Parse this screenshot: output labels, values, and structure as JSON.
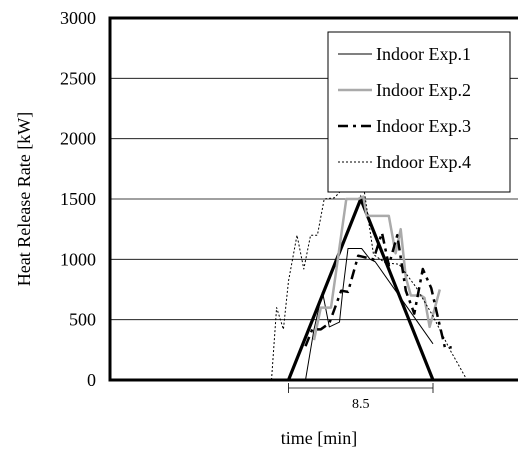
{
  "chart_data": {
    "type": "line",
    "title": "",
    "xlabel": "time [min]",
    "ylabel": "Heat Release Rate [kW]",
    "xlim": [
      0,
      24
    ],
    "ylim": [
      0,
      3000
    ],
    "y_ticks": [
      "0",
      "500",
      "1000",
      "1500",
      "2000",
      "2500",
      "3000"
    ],
    "grid": "horizontal",
    "legend_position": "top-right",
    "annotation": {
      "label": "8.5",
      "x_start": 10.5,
      "x_end": 19.0
    },
    "reference_triangle": {
      "x": [
        10.5,
        14.75,
        19.0
      ],
      "y": [
        0,
        1500,
        0
      ]
    },
    "series": [
      {
        "name": "Indoor Exp.1",
        "style": "thin-solid",
        "color": "#000000",
        "x": [
          11.5,
          12.0,
          12.5,
          12.9,
          13.5,
          13.7,
          14.0,
          14.8,
          15.3,
          15.6,
          18.0,
          19.0
        ],
        "y": [
          0,
          420,
          730,
          440,
          480,
          750,
          1090,
          1090,
          1000,
          980,
          500,
          300
        ]
      },
      {
        "name": "Indoor Exp.2",
        "style": "thick-solid-gray",
        "color": "#aaaaaa",
        "x": [
          12.0,
          12.4,
          13.0,
          13.3,
          13.9,
          14.6,
          14.9,
          15.1,
          16.1,
          16.4,
          16.8,
          17.1,
          17.4,
          17.7,
          18.3,
          18.5,
          18.8,
          19.0,
          19.4
        ],
        "y": [
          330,
          600,
          600,
          900,
          1500,
          1500,
          1520,
          1360,
          1360,
          1360,
          1050,
          1250,
          850,
          700,
          700,
          680,
          440,
          540,
          750
        ]
      },
      {
        "name": "Indoor Exp.3",
        "style": "dash-dot",
        "color": "#000000",
        "x": [
          11.5,
          11.9,
          12.4,
          12.9,
          13.6,
          14.0,
          14.6,
          15.5,
          16.0,
          16.4,
          16.9,
          17.4,
          17.9,
          18.4,
          18.9,
          19.3,
          19.7,
          20.1
        ],
        "y": [
          280,
          420,
          420,
          470,
          740,
          730,
          1030,
          1000,
          1220,
          950,
          1200,
          740,
          550,
          920,
          760,
          510,
          270,
          270
        ]
      },
      {
        "name": "Indoor Exp.4",
        "style": "dotted",
        "color": "#000000",
        "x": [
          9.5,
          9.8,
          10.2,
          10.5,
          11.0,
          11.4,
          11.8,
          12.2,
          12.6,
          13.2,
          13.6,
          14.3,
          14.9,
          15.5,
          16.2,
          17.0,
          18.0,
          19.0,
          20.0,
          21.0
        ],
        "y": [
          0,
          600,
          420,
          820,
          1200,
          920,
          1200,
          1200,
          1500,
          1510,
          1570,
          1670,
          1620,
          1040,
          970,
          960,
          770,
          530,
          250,
          0
        ]
      }
    ]
  }
}
